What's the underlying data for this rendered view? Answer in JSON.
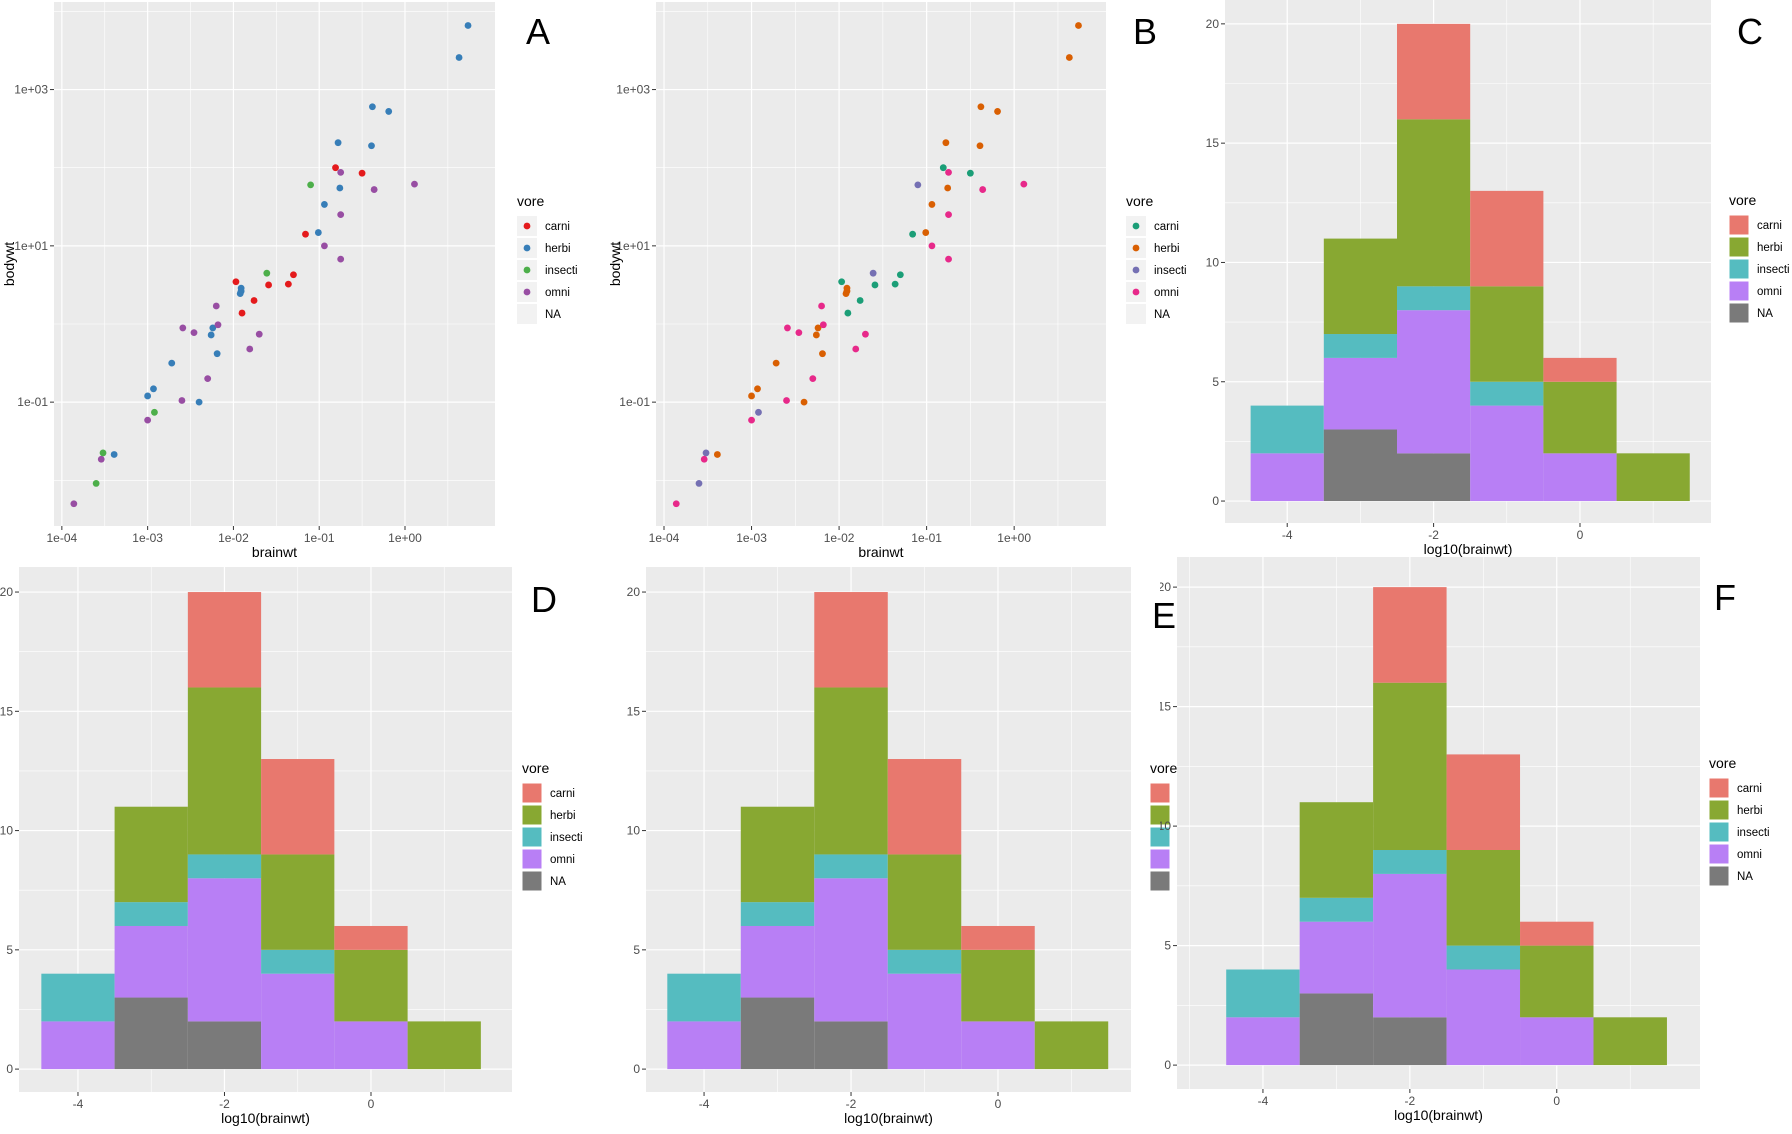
{
  "chart_data": [
    {
      "panel_letter": "A",
      "type": "scatter",
      "xlabel": "brainwt",
      "ylabel": "bodywt",
      "xscale": "log10",
      "yscale": "log10",
      "xlim": [
        8.1e-05,
        11.2
      ],
      "ylim": [
        0.0026,
        13200
      ],
      "xticks": [
        {
          "value": 0.0001,
          "label": "1e-04"
        },
        {
          "value": 0.001,
          "label": "1e-03"
        },
        {
          "value": 0.01,
          "label": "1e-02"
        },
        {
          "value": 0.1,
          "label": "1e-01"
        },
        {
          "value": 1,
          "label": "1e+00"
        }
      ],
      "yticks": [
        {
          "value": 0.1,
          "label": "1e-01"
        },
        {
          "value": 10,
          "label": "1e+01"
        },
        {
          "value": 1000,
          "label": "1e+03"
        }
      ],
      "grid": true,
      "background": "#ebebeb",
      "legend": {
        "title": "vore",
        "placement": "right",
        "entries": [
          "carni",
          "herbi",
          "insecti",
          "omni",
          "NA"
        ]
      },
      "palette": {
        "carni": "#e41a1c",
        "herbi": "#377eb8",
        "insecti": "#4daf4a",
        "omni": "#984ea3",
        "NA": null
      }
    },
    {
      "panel_letter": "B",
      "type": "scatter",
      "xlabel": "brainwt",
      "ylabel": "bodywt",
      "xscale": "log10",
      "yscale": "log10",
      "xlim": [
        8.1e-05,
        11.2
      ],
      "ylim": [
        0.0026,
        13200
      ],
      "xticks": [
        {
          "value": 0.0001,
          "label": "1e-04"
        },
        {
          "value": 0.001,
          "label": "1e-03"
        },
        {
          "value": 0.01,
          "label": "1e-02"
        },
        {
          "value": 0.1,
          "label": "1e-01"
        },
        {
          "value": 1,
          "label": "1e+00"
        }
      ],
      "yticks": [
        {
          "value": 0.1,
          "label": "1e-01"
        },
        {
          "value": 10,
          "label": "1e+01"
        },
        {
          "value": 1000,
          "label": "1e+03"
        }
      ],
      "grid": true,
      "background": "#ebebeb",
      "legend": {
        "title": "vore",
        "placement": "right",
        "entries": [
          "carni",
          "herbi",
          "insecti",
          "omni",
          "NA"
        ]
      },
      "palette": {
        "carni": "#1b9e77",
        "herbi": "#d95f02",
        "insecti": "#7570b3",
        "omni": "#e7298a",
        "NA": null
      }
    },
    {
      "panel_letter": "C",
      "type": "bar",
      "stacked": true,
      "xlabel": "log10(brainwt)",
      "ylabel": "",
      "xlim": [
        -4.85,
        1.79
      ],
      "ylim": [
        -0.92,
        21.0
      ],
      "xticks": [
        {
          "value": -4,
          "label": "-4"
        },
        {
          "value": -2,
          "label": "-2"
        },
        {
          "value": 0,
          "label": "0"
        }
      ],
      "yticks": [
        {
          "value": 0,
          "label": "0"
        },
        {
          "value": 5,
          "label": "5"
        },
        {
          "value": 10,
          "label": "10"
        },
        {
          "value": 15,
          "label": "15"
        },
        {
          "value": 20,
          "label": "20"
        }
      ],
      "grid": true,
      "background": "#ebebeb",
      "legend": {
        "title": "vore",
        "placement": "right",
        "entries": [
          "carni",
          "herbi",
          "insecti",
          "omni",
          "NA"
        ]
      }
    },
    {
      "panel_letter": "D",
      "type": "bar",
      "stacked": true,
      "xlabel": "log10(brainwt)",
      "ylabel": "",
      "xlim": [
        -4.805,
        1.925
      ],
      "ylim": [
        -0.96,
        21.05
      ],
      "xticks": [
        {
          "value": -4,
          "label": "-4"
        },
        {
          "value": -2,
          "label": "-2"
        },
        {
          "value": 0,
          "label": "0"
        }
      ],
      "yticks": [
        {
          "value": 0,
          "label": "0"
        },
        {
          "value": 5,
          "label": "5"
        },
        {
          "value": 10,
          "label": "10"
        },
        {
          "value": 15,
          "label": "15"
        },
        {
          "value": 20,
          "label": "20"
        }
      ],
      "grid": true,
      "background": "#ebebeb",
      "legend": {
        "title": "vore",
        "placement": "right",
        "entries": [
          "carni",
          "herbi",
          "insecti",
          "omni",
          "NA"
        ]
      }
    },
    {
      "panel_letter": "E",
      "type": "bar",
      "stacked": true,
      "xlabel": "log10(brainwt)",
      "ylabel": "",
      "xlim": [
        -4.79,
        1.81
      ],
      "ylim": [
        -0.96,
        21.05
      ],
      "xticks": [
        {
          "value": -4,
          "label": "-4"
        },
        {
          "value": -2,
          "label": "-2"
        },
        {
          "value": 0,
          "label": "0"
        }
      ],
      "yticks": [
        {
          "value": 0,
          "label": "0"
        },
        {
          "value": 5,
          "label": "5"
        },
        {
          "value": 10,
          "label": "10"
        },
        {
          "value": 15,
          "label": "15"
        },
        {
          "value": 20,
          "label": "20"
        }
      ],
      "grid": true,
      "background": "#ebebeb",
      "legend": {
        "title": "vore",
        "placement": "right",
        "entries": [
          "carni",
          "herbi",
          "insecti",
          "omni",
          "NA"
        ],
        "clipped": true
      }
    },
    {
      "panel_letter": "F",
      "type": "bar",
      "stacked": true,
      "xlabel": "log10(brainwt)",
      "ylabel": "",
      "xlim": [
        -5.17,
        1.95
      ],
      "ylim": [
        -1.0,
        21.26
      ],
      "xticks": [
        {
          "value": -4,
          "label": "-4"
        },
        {
          "value": -2,
          "label": "-2"
        },
        {
          "value": 0,
          "label": "0"
        }
      ],
      "yticks": [
        {
          "value": 0,
          "label": "0"
        },
        {
          "value": 5,
          "label": "5"
        },
        {
          "value": 10,
          "label": "10"
        },
        {
          "value": 15,
          "label": "15"
        },
        {
          "value": 20,
          "label": "20"
        }
      ],
      "grid": true,
      "background": "#ebebeb",
      "legend": {
        "title": "vore",
        "placement": "right",
        "entries": [
          "carni",
          "herbi",
          "insecti",
          "omni",
          "NA"
        ]
      }
    }
  ],
  "scatter_points": [
    {
      "vore": "herbi",
      "brainwt": 0.417,
      "bodywt": 603
    },
    {
      "vore": "herbi",
      "brainwt": 0.646,
      "bodywt": 525
    },
    {
      "vore": "herbi",
      "brainwt": 0.166,
      "bodywt": 209
    },
    {
      "vore": "herbi",
      "brainwt": 0.407,
      "bodywt": 191
    },
    {
      "vore": "carni",
      "brainwt": 0.155,
      "bodywt": 100
    },
    {
      "vore": "omni",
      "brainwt": 0.178,
      "bodywt": 87.1
    },
    {
      "vore": "carni",
      "brainwt": 0.316,
      "bodywt": 85.1
    },
    {
      "vore": "insecti",
      "brainwt": 0.0794,
      "bodywt": 60.3
    },
    {
      "vore": "herbi",
      "brainwt": 0.174,
      "bodywt": 55.0
    },
    {
      "vore": "omni",
      "brainwt": 0.437,
      "bodywt": 52.5
    },
    {
      "vore": "omni",
      "brainwt": 1.29,
      "bodywt": 61.7
    },
    {
      "vore": "herbi",
      "brainwt": 0.115,
      "bodywt": 33.9
    },
    {
      "vore": "omni",
      "brainwt": 0.178,
      "bodywt": 25.1
    },
    {
      "vore": "carni",
      "brainwt": 0.0692,
      "bodywt": 14.1
    },
    {
      "vore": "herbi",
      "brainwt": 0.0977,
      "bodywt": 14.8
    },
    {
      "vore": "herbi",
      "brainwt": 5.43,
      "bodywt": 6607
    },
    {
      "vore": "herbi",
      "brainwt": 4.27,
      "bodywt": 2570
    },
    {
      "vore": "omni",
      "brainwt": 0.115,
      "bodywt": 10.0
    },
    {
      "vore": "omni",
      "brainwt": 0.178,
      "bodywt": 6.76
    },
    {
      "vore": "insecti",
      "brainwt": 0.0245,
      "bodywt": 4.47
    },
    {
      "vore": "carni",
      "brainwt": 0.0501,
      "bodywt": 4.27
    },
    {
      "vore": "carni",
      "brainwt": 0.0257,
      "bodywt": 3.16
    },
    {
      "vore": "carni",
      "brainwt": 0.0437,
      "bodywt": 3.24
    },
    {
      "vore": "carni",
      "brainwt": 0.0107,
      "bodywt": 3.47
    },
    {
      "vore": "herbi",
      "brainwt": 0.0123,
      "bodywt": 2.88
    },
    {
      "vore": "herbi",
      "brainwt": 0.012,
      "bodywt": 2.45
    },
    {
      "vore": "herbi",
      "brainwt": 0.0123,
      "bodywt": 2.63
    },
    {
      "vore": "carni",
      "brainwt": 0.0174,
      "bodywt": 2.0
    },
    {
      "vore": "carni",
      "brainwt": 0.0126,
      "bodywt": 1.38
    },
    {
      "vore": "omni",
      "brainwt": 0.00631,
      "bodywt": 1.7
    },
    {
      "vore": "omni",
      "brainwt": 0.00257,
      "bodywt": 0.891
    },
    {
      "vore": "omni",
      "brainwt": 0.00347,
      "bodywt": 0.776
    },
    {
      "vore": "herbi",
      "brainwt": 0.00575,
      "bodywt": 0.891
    },
    {
      "vore": "omni",
      "brainwt": 0.00661,
      "bodywt": 0.977
    },
    {
      "vore": "herbi",
      "brainwt": 0.0055,
      "bodywt": 0.724
    },
    {
      "vore": "omni",
      "brainwt": 0.02,
      "bodywt": 0.741
    },
    {
      "vore": "omni",
      "brainwt": 0.0155,
      "bodywt": 0.479
    },
    {
      "vore": "herbi",
      "brainwt": 0.00646,
      "bodywt": 0.417
    },
    {
      "vore": "herbi",
      "brainwt": 0.00191,
      "bodywt": 0.316
    },
    {
      "vore": "omni",
      "brainwt": 0.00501,
      "bodywt": 0.2
    },
    {
      "vore": "herbi",
      "brainwt": 0.00117,
      "bodywt": 0.148
    },
    {
      "vore": "herbi",
      "brainwt": 0.001,
      "bodywt": 0.12
    },
    {
      "vore": "omni",
      "brainwt": 0.00251,
      "bodywt": 0.105
    },
    {
      "vore": "herbi",
      "brainwt": 0.00398,
      "bodywt": 0.1
    },
    {
      "vore": "insecti",
      "brainwt": 0.0012,
      "bodywt": 0.0741
    },
    {
      "vore": "omni",
      "brainwt": 0.001,
      "bodywt": 0.0589
    },
    {
      "vore": "insecti",
      "brainwt": 0.000302,
      "bodywt": 0.0224
    },
    {
      "vore": "omni",
      "brainwt": 0.000288,
      "bodywt": 0.0186
    },
    {
      "vore": "herbi",
      "brainwt": 0.000407,
      "bodywt": 0.0214
    },
    {
      "vore": "insecti",
      "brainwt": 0.000251,
      "bodywt": 0.00912
    },
    {
      "vore": "omni",
      "brainwt": 0.000138,
      "bodywt": 0.00501
    }
  ],
  "histogram": {
    "bin_centers": [
      -4,
      -3,
      -2,
      -1,
      0,
      1
    ],
    "bin_width": 1,
    "stack_order_bottom_to_top": [
      "NA",
      "omni",
      "insecti",
      "herbi",
      "carni"
    ],
    "counts": {
      "carni": [
        0,
        0,
        4,
        4,
        1,
        0
      ],
      "herbi": [
        0,
        4,
        7,
        4,
        3,
        2
      ],
      "insecti": [
        2,
        1,
        1,
        1,
        0,
        0
      ],
      "omni": [
        2,
        3,
        6,
        4,
        2,
        0
      ],
      "NA": [
        0,
        3,
        2,
        0,
        0,
        0
      ]
    },
    "palette": {
      "carni": "#e8786e",
      "herbi": "#88a832",
      "insecti": "#55bcc0",
      "omni": "#b87ff5",
      "NA": "#7a7a7a"
    }
  }
}
